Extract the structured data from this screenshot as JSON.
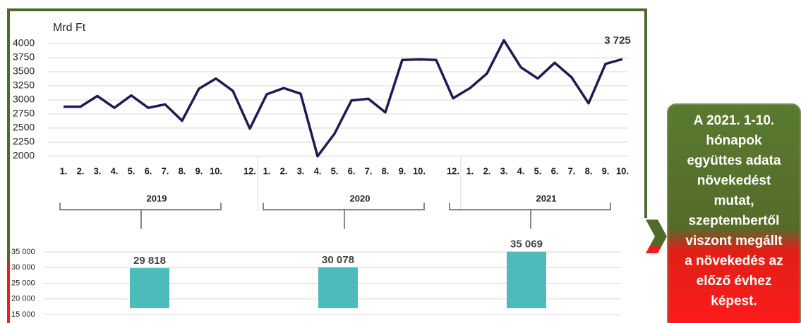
{
  "chart_data": [
    {
      "type": "line",
      "y_label": "Mrd Ft",
      "categories": [
        "1.",
        "2.",
        "3.",
        "4.",
        "5.",
        "6.",
        "7.",
        "8.",
        "9.",
        "10.",
        null,
        "12.",
        "1.",
        "2.",
        "3.",
        "4.",
        "5.",
        "6.",
        "7.",
        "8.",
        "9.",
        "10.",
        null,
        "12.",
        "1.",
        "2.",
        "3.",
        "4.",
        "5.",
        "6.",
        "7.",
        "8.",
        "9.",
        "10."
      ],
      "groups": [
        "2019",
        "2020",
        "2021"
      ],
      "series": [
        {
          "name": "Mrd Ft",
          "color": "#1f1a4f",
          "values": [
            2880,
            2880,
            3070,
            2860,
            3080,
            2860,
            2920,
            2630,
            3200,
            3380,
            3160,
            2490,
            3100,
            3210,
            3110,
            2000,
            2400,
            2990,
            3020,
            2780,
            3710,
            3720,
            3710,
            3030,
            3210,
            3470,
            4060,
            3580,
            3380,
            3660,
            3400,
            2940,
            3640,
            3725
          ],
          "value_labels": [
            null,
            null,
            null,
            null,
            null,
            null,
            null,
            null,
            null,
            null,
            null,
            null,
            null,
            null,
            null,
            null,
            null,
            null,
            null,
            null,
            null,
            null,
            null,
            null,
            null,
            null,
            null,
            null,
            null,
            null,
            null,
            null,
            null,
            "3 725"
          ]
        }
      ],
      "ylim": [
        2000,
        4000
      ],
      "yticks": [
        2000,
        2250,
        2500,
        2750,
        3000,
        3250,
        3500,
        3750,
        4000
      ],
      "grid": true
    },
    {
      "type": "bar",
      "values": [
        29818,
        30078,
        35069
      ],
      "value_labels": [
        "29 818",
        "30 078",
        "35 069"
      ],
      "color": "#4bbbbb",
      "ylim": [
        15000,
        35000
      ],
      "yticks": [
        {
          "value": 15000,
          "label": "15 000"
        },
        {
          "value": 20000,
          "label": "20 000"
        },
        {
          "value": 25000,
          "label": "25 000"
        },
        {
          "value": 30000,
          "label": "30 000"
        },
        {
          "value": 35000,
          "label": "35 000"
        }
      ],
      "grid": true
    }
  ],
  "callout": [
    "A 2021. 1-10.",
    "hónapok",
    "együttes adata",
    "növekedést",
    "mutat,",
    "szeptembertől",
    "viszont megállt",
    "a növekedés az",
    "előző évhez",
    "képest."
  ]
}
